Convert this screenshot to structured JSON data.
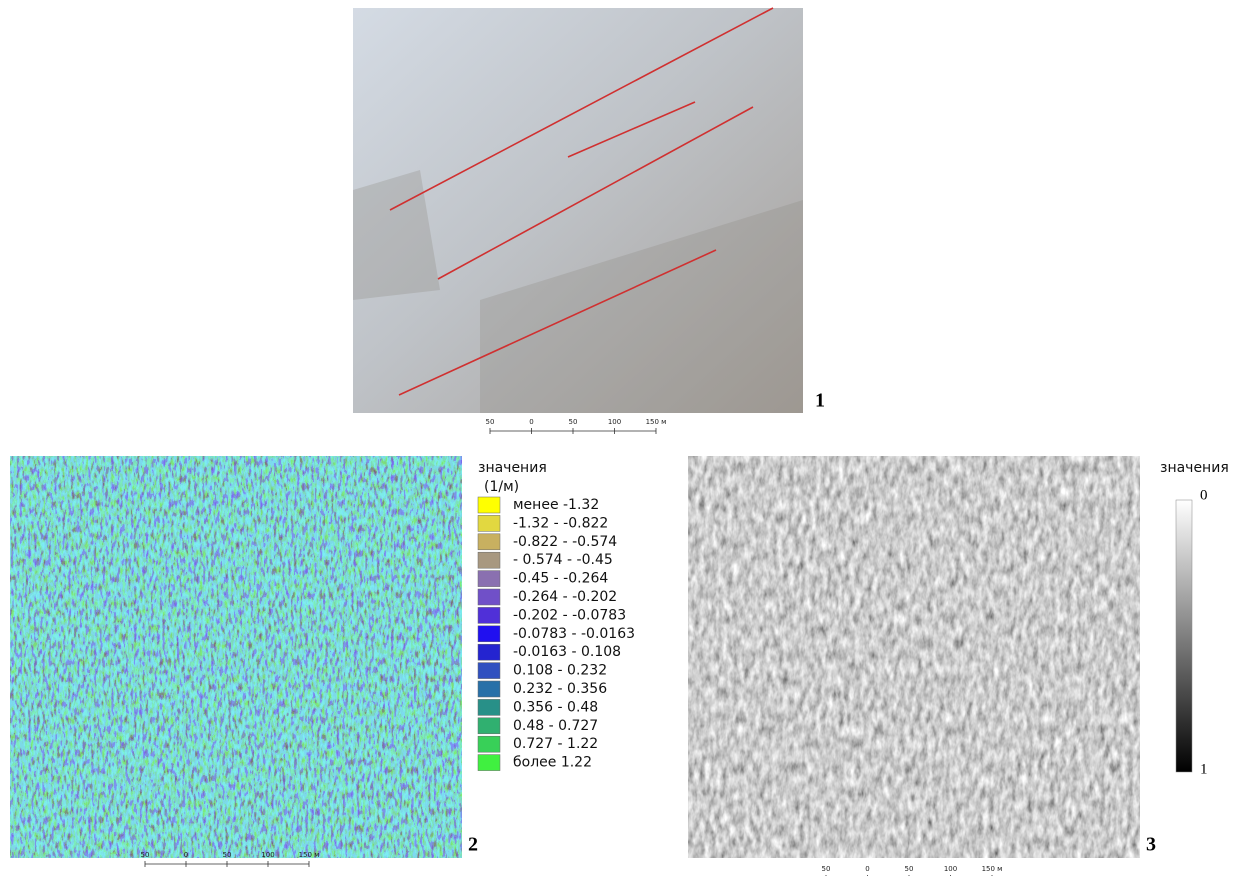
{
  "panels": [
    {
      "label": "1",
      "scale": [
        "50",
        "0",
        "50",
        "100",
        "150 м"
      ]
    },
    {
      "label": "2",
      "scale": [
        "50",
        "0",
        "50",
        "100",
        "150 м"
      ],
      "legend": {
        "title": "значения",
        "unit": "(1/м)",
        "items": [
          {
            "label": "менее -1.32",
            "color": "#ffff00"
          },
          {
            "label": "-1.32 - -0.822",
            "color": "#e2d840"
          },
          {
            "label": "-0.822 - -0.574",
            "color": "#c8b060"
          },
          {
            "label": "- 0.574 - -0.45",
            "color": "#a89880"
          },
          {
            "label": "-0.45 - -0.264",
            "color": "#8a70b0"
          },
          {
            "label": "-0.264 - -0.202",
            "color": "#7050c8"
          },
          {
            "label": "-0.202 - -0.0783",
            "color": "#5030d8"
          },
          {
            "label": "-0.0783 - -0.0163",
            "color": "#2010f0"
          },
          {
            "label": "-0.0163 - 0.108",
            "color": "#2424d0"
          },
          {
            "label": "0.108 - 0.232",
            "color": "#3050c0"
          },
          {
            "label": "0.232 - 0.356",
            "color": "#2870a8"
          },
          {
            "label": "0.356 - 0.48",
            "color": "#289088"
          },
          {
            "label": "0.48 - 0.727",
            "color": "#30b070"
          },
          {
            "label": "0.727 - 1.22",
            "color": "#38d058"
          },
          {
            "label": "более 1.22",
            "color": "#40f040"
          }
        ]
      }
    },
    {
      "label": "3",
      "scale": [
        "50",
        "0",
        "50",
        "100",
        "150 м"
      ],
      "legend": {
        "title": "значения",
        "top_label": "0",
        "bottom_label": "1"
      }
    }
  ]
}
